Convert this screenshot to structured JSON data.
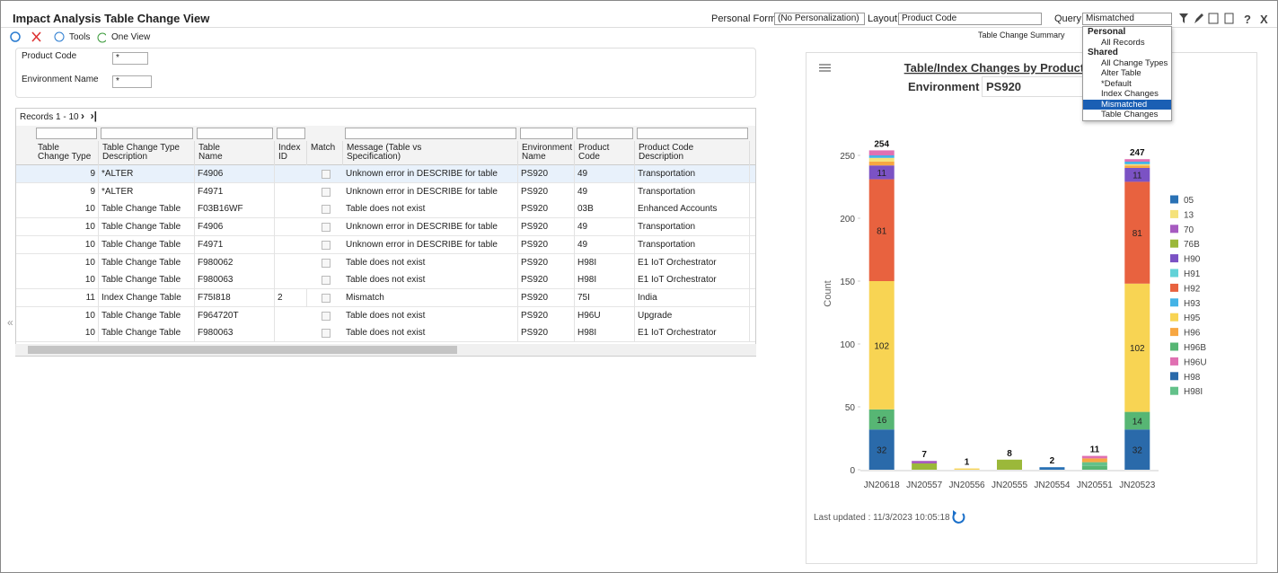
{
  "header": {
    "title": "Impact Analysis Table Change View",
    "personal_form_label": "Personal Form:",
    "personal_form": "(No Personalization)",
    "layout_label": "Layout:",
    "layout": "Product Code",
    "query_label": "Query:",
    "query": "Mismatched"
  },
  "toolbar": {
    "tools": "Tools",
    "one_view": "One View"
  },
  "summary_tab": "Table Change Summary",
  "query_menu": {
    "groups": [
      {
        "name": "Personal",
        "items": [
          "All Records"
        ]
      },
      {
        "name": "Shared",
        "items": [
          "All Change Types",
          "Alter Table",
          "*Default",
          "Index Changes",
          "Mismatched",
          "Table Changes"
        ]
      }
    ],
    "selected": "Mismatched"
  },
  "filters": [
    {
      "label": "Product Code",
      "value": "*"
    },
    {
      "label": "Environment Name",
      "value": "*"
    }
  ],
  "grid": {
    "records": "Records 1 - 10",
    "columns": [
      "Table Change Type",
      "Table Change Type Description",
      "Table Name",
      "Index ID",
      "Match",
      "Message (Table vs Specification)",
      "Environment Name",
      "Product Code",
      "Product Code Description"
    ],
    "rows": [
      [
        9,
        "*ALTER",
        "F4906",
        null,
        null,
        "Unknown error in DESCRIBE for table",
        "PS920",
        "49",
        "Transportation Management"
      ],
      [
        9,
        "*ALTER",
        "F4971",
        null,
        null,
        "Unknown error in DESCRIBE for table",
        "PS920",
        "49",
        "Transportation Management"
      ],
      [
        10,
        "Table Change Table",
        "F03B16WF",
        null,
        null,
        "Table does not exist",
        "PS920",
        "03B",
        "Enhanced Accounts Receivable"
      ],
      [
        10,
        "Table Change Table",
        "F4906",
        null,
        null,
        "Unknown error in DESCRIBE for table",
        "PS920",
        "49",
        "Transportation Management"
      ],
      [
        10,
        "Table Change Table",
        "F4971",
        null,
        null,
        "Unknown error in DESCRIBE for table",
        "PS920",
        "49",
        "Transportation Management"
      ],
      [
        10,
        "Table Change Table",
        "F980062",
        null,
        null,
        "Table does not exist",
        "PS920",
        "H98I",
        "E1 IoT Orchestrator"
      ],
      [
        10,
        "Table Change Table",
        "F980063",
        null,
        null,
        "Table does not exist",
        "PS920",
        "H98I",
        "E1 IoT Orchestrator"
      ],
      [
        11,
        "Index Change Table",
        "F75I818",
        2,
        null,
        "Mismatch",
        "PS920",
        "75I",
        "India"
      ],
      [
        10,
        "Table Change Table",
        "F964720T",
        null,
        null,
        "Table does not exist",
        "PS920",
        "H96U",
        "Upgrade"
      ],
      [
        10,
        "Table Change Table",
        "F980063",
        null,
        null,
        "Table does not exist",
        "PS920",
        "H98I",
        "E1 IoT Orchestrator"
      ]
    ]
  },
  "chart_data": {
    "type": "stacked_bar",
    "title": "Table/Index Changes by Product Code",
    "environment_label": "Environment",
    "environment": "PS920",
    "y_label": "Count",
    "categories": [
      "JN20618",
      "JN20557",
      "JN20556",
      "JN20555",
      "JN20554",
      "JN20551",
      "JN20523"
    ],
    "totals": [
      254,
      7,
      1,
      8,
      2,
      11,
      247
    ],
    "ylim": [
      0,
      260
    ],
    "yticks": [
      0,
      50,
      100,
      150,
      200,
      250
    ],
    "series": [
      {
        "name": "05",
        "color": "#2a72b5",
        "values": [
          0,
          0,
          0,
          0,
          2,
          0,
          0
        ]
      },
      {
        "name": "13",
        "color": "#f5e27a",
        "values": [
          3,
          0,
          0,
          0,
          0,
          0,
          1
        ]
      },
      {
        "name": "70",
        "color": "#a65bc0",
        "values": [
          0,
          2,
          0,
          0,
          0,
          0,
          0
        ]
      },
      {
        "name": "76B",
        "color": "#9bb83a",
        "values": [
          0,
          5,
          0,
          8,
          0,
          0,
          0
        ]
      },
      {
        "name": "H90",
        "color": "#7b52c4",
        "values": [
          11,
          0,
          0,
          0,
          0,
          0,
          11
        ]
      },
      {
        "name": "H91",
        "color": "#62d2d8",
        "values": [
          0,
          0,
          0,
          0,
          0,
          0,
          0
        ]
      },
      {
        "name": "H92",
        "color": "#e8623f",
        "values": [
          81,
          0,
          0,
          0,
          0,
          0,
          81
        ]
      },
      {
        "name": "H93",
        "color": "#44b3e6",
        "values": [
          2,
          0,
          0,
          0,
          0,
          0,
          2
        ]
      },
      {
        "name": "H95",
        "color": "#f8d453",
        "values": [
          102,
          0,
          1,
          0,
          0,
          0,
          102
        ]
      },
      {
        "name": "H96",
        "color": "#f7a742",
        "values": [
          3,
          0,
          0,
          0,
          0,
          3,
          2
        ]
      },
      {
        "name": "H96B",
        "color": "#57b674",
        "values": [
          16,
          0,
          0,
          0,
          0,
          3,
          14
        ]
      },
      {
        "name": "H96U",
        "color": "#e070b2",
        "values": [
          4,
          0,
          0,
          0,
          0,
          2,
          2
        ]
      },
      {
        "name": "H98",
        "color": "#2a6aaa",
        "values": [
          32,
          0,
          0,
          0,
          0,
          0,
          32
        ]
      },
      {
        "name": "H98I",
        "color": "#63c18a",
        "values": [
          0,
          0,
          0,
          0,
          0,
          3,
          0
        ]
      }
    ],
    "legend": "right",
    "footer": "Last updated : 11/3/2023 10:05:18"
  }
}
